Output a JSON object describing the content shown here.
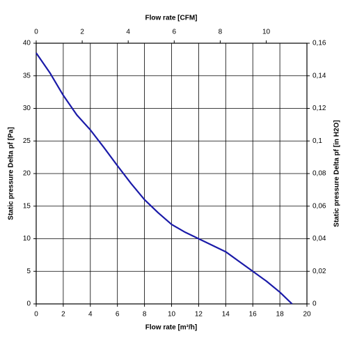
{
  "chart_data": {
    "type": "line",
    "xlabel": "Flow rate [m³/h]",
    "x2label": "Flow rate [CFM]",
    "ylabel": "Static pressure Delta pf [Pa]",
    "y2label": "Static pressure Delta pf [in H2O]",
    "x": [
      0,
      1,
      2,
      3,
      4,
      5,
      6,
      7,
      8,
      9,
      10,
      11,
      12,
      13,
      14,
      15,
      16,
      17,
      18,
      18.9
    ],
    "values": [
      38.5,
      35.5,
      32,
      29,
      26.7,
      24,
      21.2,
      18.5,
      16,
      14,
      12.2,
      11,
      10,
      9,
      8,
      6.5,
      5,
      3.5,
      1.8,
      0
    ],
    "color": "#1a1aa8",
    "xlim": [
      0,
      20
    ],
    "xticks": [
      0,
      2,
      4,
      6,
      8,
      10,
      12,
      14,
      16,
      18,
      20
    ],
    "x2lim": [
      0,
      11.77
    ],
    "x2ticks": [
      0,
      2,
      4,
      6,
      8,
      10
    ],
    "ylim": [
      0,
      40
    ],
    "yticks": [
      0,
      5,
      10,
      15,
      20,
      25,
      30,
      35,
      40
    ],
    "y2lim": [
      0,
      0.16
    ],
    "y2ticks": [
      0,
      {
        "value": 0.02,
        "label": "0,02"
      },
      {
        "value": 0.04,
        "label": "0,04"
      },
      {
        "value": 0.06,
        "label": "0,06"
      },
      {
        "value": 0.08,
        "label": "0,08"
      },
      {
        "value": 0.1,
        "label": "0,1"
      },
      {
        "value": 0.12,
        "label": "0,12"
      },
      {
        "value": 0.14,
        "label": "0,14"
      },
      {
        "value": 0.16,
        "label": "0,16"
      }
    ],
    "grid": true
  }
}
